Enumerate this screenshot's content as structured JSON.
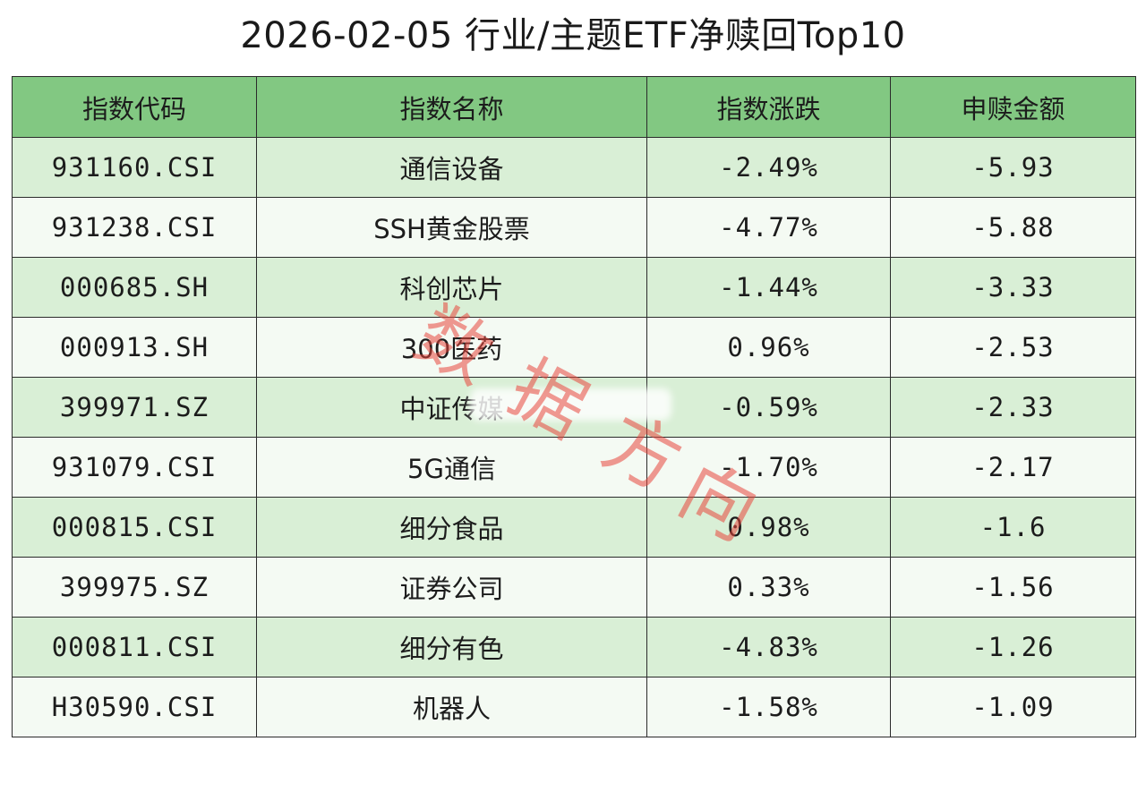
{
  "title": "2026-02-05 行业/主题ETF净赎回Top10",
  "table": {
    "headers": [
      "指数代码",
      "指数名称",
      "指数涨跌",
      "申赎金额"
    ],
    "rows": [
      {
        "code": "931160.CSI",
        "name": "通信设备",
        "change": "-2.49%",
        "amount": "-5.93"
      },
      {
        "code": "931238.CSI",
        "name": "SSH黄金股票",
        "change": "-4.77%",
        "amount": "-5.88"
      },
      {
        "code": "000685.SH",
        "name": "科创芯片",
        "change": "-1.44%",
        "amount": "-3.33"
      },
      {
        "code": "000913.SH",
        "name": "300医药",
        "change": "0.96%",
        "amount": "-2.53"
      },
      {
        "code": "399971.SZ",
        "name": "中证传媒",
        "change": "-0.59%",
        "amount": "-2.33"
      },
      {
        "code": "931079.CSI",
        "name": "5G通信",
        "change": "-1.70%",
        "amount": "-2.17"
      },
      {
        "code": "000815.CSI",
        "name": "细分食品",
        "change": "0.98%",
        "amount": "-1.6"
      },
      {
        "code": "399975.SZ",
        "name": "证券公司",
        "change": "0.33%",
        "amount": "-1.56"
      },
      {
        "code": "000811.CSI",
        "name": "细分有色",
        "change": "-4.83%",
        "amount": "-1.26"
      },
      {
        "code": "H30590.CSI",
        "name": "机器人",
        "change": "-1.58%",
        "amount": "-1.09"
      }
    ]
  },
  "watermark": {
    "chars": [
      "数",
      "据",
      "方",
      "向"
    ],
    "color": "#e8463c"
  },
  "colors": {
    "header_bg": "#82c882",
    "row_odd_bg": "#d9efd6",
    "row_even_bg": "#f4faf3",
    "border": "#2b2b2b"
  }
}
